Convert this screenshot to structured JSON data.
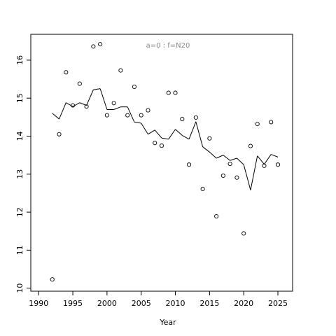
{
  "chart_data": {
    "type": "scatter",
    "title": "",
    "annotation": "a=0  :  f=N20",
    "xlabel": "Year",
    "ylabel": "",
    "xlim": [
      1988.85,
      2027.15
    ],
    "ylim": [
      9.92,
      16.68
    ],
    "xticks": [
      1990,
      1995,
      2000,
      2005,
      2010,
      2015,
      2020,
      2025
    ],
    "yticks": [
      10,
      11,
      12,
      13,
      14,
      15,
      16
    ],
    "grid": false,
    "legend": "none",
    "series": [
      {
        "type": "scatter",
        "marker": "open-circle",
        "x": [
          1992,
          1993,
          1994,
          1995,
          1996,
          1997,
          1998,
          1999,
          2000,
          2001,
          2002,
          2003,
          2004,
          2005,
          2006,
          2007,
          2008,
          2009,
          2010,
          2011,
          2012,
          2013,
          2014,
          2015,
          2016,
          2017,
          2018,
          2019,
          2020,
          2021,
          2022,
          2023,
          2024,
          2025
        ],
        "y": [
          10.23,
          14.05,
          15.68,
          14.81,
          15.38,
          14.78,
          16.36,
          16.42,
          14.55,
          14.87,
          15.73,
          14.55,
          15.3,
          14.55,
          14.68,
          13.82,
          13.75,
          15.14,
          15.14,
          14.45,
          13.25,
          14.49,
          12.61,
          13.94,
          11.89,
          12.96,
          13.27,
          12.91,
          11.44,
          13.74,
          14.32,
          13.22,
          14.37,
          13.25
        ]
      },
      {
        "type": "line",
        "x": [
          1992,
          1993,
          1994,
          1995,
          1996,
          1997,
          1998,
          1999,
          2000,
          2001,
          2002,
          2003,
          2004,
          2005,
          2006,
          2007,
          2008,
          2009,
          2010,
          2011,
          2012,
          2013,
          2014,
          2015,
          2016,
          2017,
          2018,
          2019,
          2020,
          2021,
          2022,
          2023,
          2024,
          2025
        ],
        "y": [
          14.6,
          14.45,
          14.88,
          14.78,
          14.88,
          14.81,
          15.22,
          15.25,
          14.7,
          14.7,
          14.77,
          14.77,
          14.37,
          14.34,
          14.05,
          14.16,
          13.95,
          13.92,
          14.18,
          14.02,
          13.92,
          14.38,
          13.72,
          13.58,
          13.42,
          13.5,
          13.36,
          13.42,
          13.25,
          12.58,
          13.48,
          13.26,
          13.52,
          13.45
        ]
      }
    ]
  }
}
